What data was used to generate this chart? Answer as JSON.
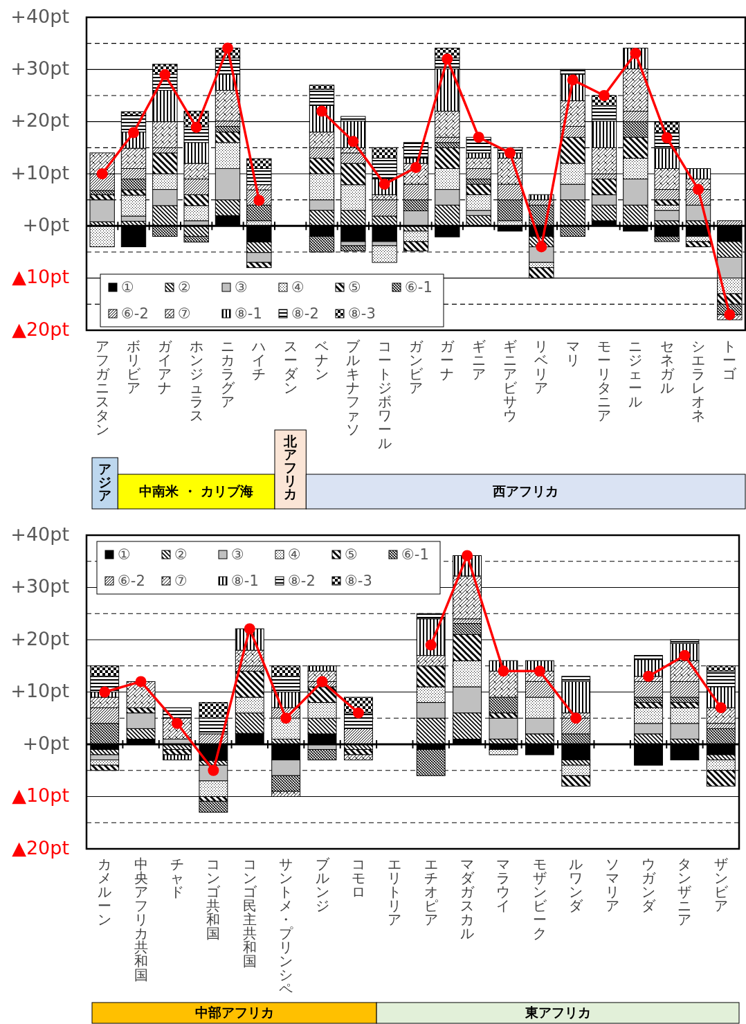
{
  "chart_data": [
    {
      "type": "bar",
      "stacked": true,
      "grid": true,
      "legend": "bottom left",
      "marker": "circle",
      "ylim": [
        -20,
        40
      ],
      "yticks": [
        {
          "value": -20,
          "label": "▲20pt"
        },
        {
          "value": -15,
          "label": null
        },
        {
          "value": -10,
          "label": "▲10pt"
        },
        {
          "value": -5,
          "label": null
        },
        {
          "value": 0,
          "label": "+0pt"
        },
        {
          "value": 5,
          "label": null
        },
        {
          "value": 10,
          "label": "+10pt"
        },
        {
          "value": 15,
          "label": null
        },
        {
          "value": 20,
          "label": "+20pt"
        },
        {
          "value": 25,
          "label": null
        },
        {
          "value": 30,
          "label": "+30pt"
        },
        {
          "value": 35,
          "label": null
        },
        {
          "value": 40,
          "label": "+40pt"
        }
      ],
      "categories": [
        "アフガニスタン",
        "ボリビア",
        "ガイアナ",
        "ホンジュラス",
        "ニカラグア",
        "ハイチ",
        "スーダン",
        "ベナン",
        "ブルキナファソ",
        "コートジボワール",
        "ガンビア",
        "ガーナ",
        "ギニア",
        "ギニアビサウ",
        "リベリア",
        "マリ",
        "モーリタニア",
        "ニジェール",
        "セネガル",
        "シエラレオネ",
        "トーゴ"
      ],
      "annotations": [
        "アジア",
        "中南米 ・ カリブ海",
        "北アフリカ",
        "西アフリカ"
      ],
      "series": [
        {
          "name": "①",
          "color": "#000000",
          "values": [
            null,
            -4.0,
            null,
            null,
            2.0,
            -3.1,
            null,
            -2.0,
            -3.0,
            -3.0,
            null,
            -2.1,
            null,
            -1.0,
            -2.0,
            null,
            1.0,
            -1.0,
            -2.0,
            -2.0,
            -3.0
          ]
        },
        {
          "name": "②",
          "color": "#000000",
          "values": [
            0.8,
            0.9,
            3.9,
            -2.0,
            3.0,
            -2.0,
            null,
            3.0,
            3.0,
            1.9,
            -1.0,
            4.0,
            2.0,
            null,
            -2.0,
            5.0,
            3.0,
            4.0,
            1.0,
            1.0,
            -3.0
          ]
        },
        {
          "name": "③",
          "color": "#c0c0c0",
          "values": [
            4.2,
            1.0,
            3.1,
            1.0,
            6.0,
            -1.9,
            null,
            2.0,
            -0.8,
            -0.8,
            2.9,
            3.0,
            1.0,
            null,
            -3.0,
            3.0,
            2.0,
            5.0,
            2.0,
            3.0,
            -4.0
          ]
        },
        {
          "name": "④",
          "color": "#000000",
          "values": [
            -4.0,
            4.0,
            3.0,
            2.9,
            5.0,
            1.0,
            null,
            5.0,
            4.9,
            -3.2,
            -2.0,
            4.0,
            3.0,
            1.0,
            -1.0,
            4.0,
            null,
            4.0,
            1.0,
            -1.0,
            -3.0
          ]
        },
        {
          "name": "⑤",
          "color": "#000000",
          "values": [
            1.0,
            1.0,
            4.0,
            2.1,
            2.0,
            -1.0,
            null,
            3.0,
            4.1,
            null,
            -1.8,
            4.0,
            2.0,
            null,
            -2.0,
            5.0,
            3.0,
            4.0,
            1.0,
            -1.0,
            -2.0
          ]
        },
        {
          "name": "⑥-1",
          "color": "#000000",
          "values": [
            0.8,
            2.1,
            -2.0,
            -1.1,
            1.1,
            3.0,
            null,
            -3.0,
            -1.0,
            null,
            2.1,
            1.0,
            1.0,
            4.0,
            4.0,
            -2.0,
            null,
            3.0,
            -1.0,
            null,
            -2.0
          ]
        },
        {
          "name": "⑥-2",
          "color": "#000000",
          "values": [
            3.2,
            2.0,
            1.0,
            3.0,
            1.0,
            2.9,
            null,
            2.0,
            2.0,
            3.1,
            3.0,
            1.0,
            2.0,
            3.0,
            1.0,
            2.1,
            1.0,
            2.0,
            2.0,
            3.0,
            1.0
          ]
        },
        {
          "name": "⑦",
          "color": "#000000",
          "values": [
            4.0,
            3.9,
            5.0,
            3.0,
            5.9,
            1.0,
            null,
            3.0,
            1.0,
            1.0,
            4.0,
            5.0,
            2.0,
            5.0,
            null,
            4.9,
            5.0,
            8.1,
            4.0,
            2.0,
            -1.0
          ]
        },
        {
          "name": "⑧-1",
          "color": "#000000",
          "values": [
            null,
            3.1,
            6.0,
            4.0,
            3.1,
            null,
            null,
            5.1,
            5.1,
            3.0,
            1.0,
            8.1,
            1.0,
            1.0,
            1.0,
            5.1,
            5.1,
            4.0,
            3.9,
            2.0,
            null
          ]
        },
        {
          "name": "⑧-2",
          "color": "#000000",
          "values": [
            null,
            3.2,
            3.1,
            3.0,
            3.1,
            3.1,
            null,
            3.1,
            0.9,
            4.0,
            3.0,
            2.1,
            3.0,
            1.0,
            null,
            0.9,
            2.9,
            null,
            3.0,
            null,
            null
          ]
        },
        {
          "name": "⑧-3",
          "color": "#000000",
          "values": [
            null,
            0.7,
            1.9,
            3.0,
            1.9,
            1.9,
            null,
            0.8,
            null,
            2.0,
            null,
            1.9,
            null,
            null,
            null,
            null,
            2.0,
            null,
            2.0,
            null,
            null
          ]
        },
        {
          "type": "line",
          "color": "#ff0000",
          "values": [
            10.0,
            17.9,
            29.0,
            18.9,
            34.1,
            4.9,
            null,
            22.0,
            16.2,
            8.0,
            11.2,
            32.0,
            17.0,
            14.0,
            -4.0,
            28.0,
            25.0,
            33.1,
            16.9,
            7.0,
            -17.0
          ]
        }
      ]
    },
    {
      "type": "bar",
      "stacked": true,
      "grid": true,
      "legend": "top left",
      "marker": "circle",
      "ylim": [
        -20,
        40
      ],
      "yticks": [
        {
          "value": -20,
          "label": "▲20pt"
        },
        {
          "value": -15,
          "label": null
        },
        {
          "value": -10,
          "label": "▲10pt"
        },
        {
          "value": -5,
          "label": null
        },
        {
          "value": 0,
          "label": "+0pt"
        },
        {
          "value": 5,
          "label": null
        },
        {
          "value": 10,
          "label": "+10pt"
        },
        {
          "value": 15,
          "label": null
        },
        {
          "value": 20,
          "label": "+20pt"
        },
        {
          "value": 25,
          "label": null
        },
        {
          "value": 30,
          "label": "+30pt"
        },
        {
          "value": 35,
          "label": null
        },
        {
          "value": 40,
          "label": "+40pt"
        }
      ],
      "categories": [
        "カメルーン",
        "中央アフリカ共和国",
        "チャド",
        "コンゴ共和国",
        "コンゴ民主共和国",
        "サントメ・プリンシペ",
        "ブルンジ",
        "コモロ",
        "エリトリア",
        "エチオピア",
        "マダガスカル",
        "マラウイ",
        "モザンビーク",
        "ルワンダ",
        "ソマリア",
        "ウガンダ",
        "タンザニア",
        "ザンビア"
      ],
      "annotations": [
        "中部アフリカ",
        "東アフリカ"
      ],
      "series": [
        {
          "name": "①",
          "color": "#000000",
          "values": [
            -1.0,
            1.0,
            null,
            -3.1,
            2.1,
            -3.0,
            2.0,
            null,
            null,
            -1.0,
            1.0,
            -1.0,
            -2.0,
            -3.0,
            null,
            -4.0,
            -3.0,
            -2.0
          ]
        },
        {
          "name": "②",
          "color": "#000000",
          "values": [
            -1.0,
            2.0,
            -1.0,
            -0.9,
            3.9,
            1.0,
            3.0,
            -1.0,
            null,
            5.0,
            5.0,
            1.0,
            2.0,
            -1.0,
            null,
            2.0,
            1.0,
            -1.0
          ]
        },
        {
          "name": "③",
          "color": "#c0c0c0",
          "values": [
            -1.0,
            3.0,
            1.0,
            -3.0,
            null,
            -3.0,
            -1.0,
            null,
            null,
            3.0,
            5.0,
            4.0,
            3.0,
            null,
            null,
            2.0,
            3.0,
            null
          ]
        },
        {
          "name": "④",
          "color": "#000000",
          "values": [
            -1.0,
            null,
            null,
            -3.0,
            3.0,
            4.0,
            3.0,
            null,
            null,
            3.0,
            5.0,
            -1.0,
            4.0,
            -2.0,
            null,
            3.0,
            3.0,
            -2.0
          ]
        },
        {
          "name": "⑤",
          "color": "#000000",
          "values": [
            -1.0,
            1.0,
            -1.0,
            -0.9,
            5.0,
            null,
            3.0,
            -1.0,
            null,
            4.0,
            5.0,
            1.0,
            null,
            -2.0,
            null,
            1.0,
            1.0,
            -3.0
          ]
        },
        {
          "name": "⑥-1",
          "color": "#000000",
          "values": [
            4.0,
            null,
            null,
            -2.1,
            null,
            -3.0,
            -2.0,
            null,
            null,
            -5.0,
            2.1,
            3.0,
            null,
            2.0,
            null,
            1.0,
            1.0,
            3.0
          ]
        },
        {
          "name": "⑥-2",
          "color": "#000000",
          "values": [
            3.0,
            null,
            null,
            2.0,
            1.0,
            2.0,
            1.0,
            3.0,
            null,
            null,
            0.9,
            null,
            3.0,
            3.0,
            null,
            3.0,
            3.0,
            1.0
          ]
        },
        {
          "name": "⑦",
          "color": "#000000",
          "values": [
            2.0,
            5.0,
            4.0,
            null,
            3.0,
            -1.0,
            2.0,
            -1.0,
            null,
            2.0,
            8.2,
            5.0,
            2.0,
            1.0,
            null,
            1.0,
            4.0,
            3.0
          ]
        },
        {
          "name": "⑧-1",
          "color": "#000000",
          "values": [
            1.0,
            null,
            -1.0,
            null,
            4.1,
            3.0,
            1.0,
            null,
            null,
            7.0,
            3.9,
            2.0,
            2.0,
            6.0,
            null,
            3.2,
            3.3,
            4.0
          ]
        },
        {
          "name": "⑧-2",
          "color": "#000000",
          "values": [
            3.0,
            null,
            2.0,
            3.0,
            null,
            3.0,
            null,
            3.0,
            null,
            1.0,
            null,
            null,
            null,
            1.0,
            null,
            0.8,
            0.7,
            3.0
          ]
        },
        {
          "name": "⑧-3",
          "color": "#000000",
          "values": [
            2.0,
            null,
            null,
            3.0,
            null,
            2.0,
            null,
            3.0,
            null,
            null,
            null,
            null,
            null,
            null,
            null,
            null,
            null,
            1.0
          ]
        },
        {
          "type": "line",
          "color": "#ff0000",
          "values": [
            10.0,
            12.0,
            4.0,
            -5.0,
            22.1,
            5.0,
            12.0,
            6.0,
            null,
            19.0,
            36.1,
            14.0,
            14.0,
            5.0,
            null,
            13.0,
            17.0,
            7.0
          ]
        }
      ]
    }
  ]
}
